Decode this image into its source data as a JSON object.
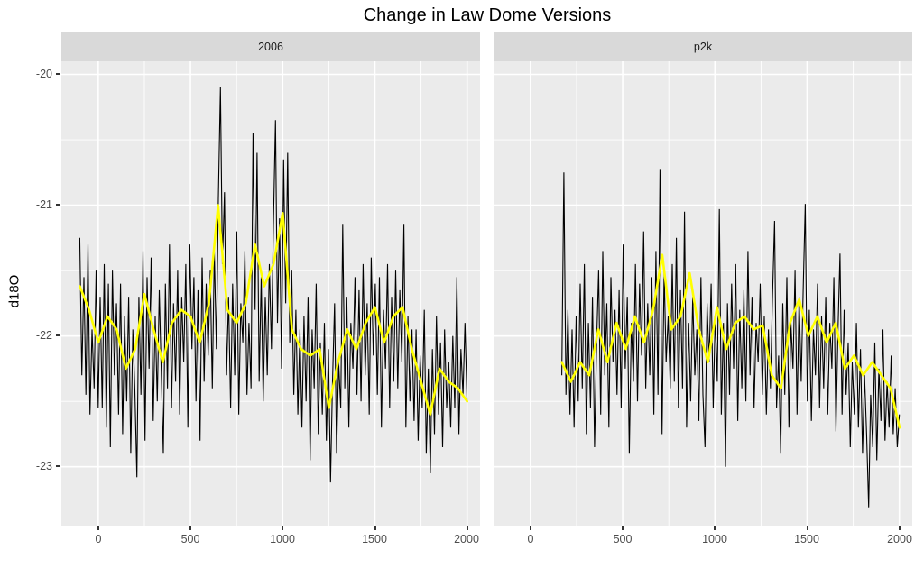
{
  "colors": {
    "panel_bg": "#EBEBEB",
    "strip_bg": "#D9D9D9",
    "grid": "#FFFFFF",
    "raw_line": "#000000",
    "smooth_line": "#FFFF00",
    "axis_text": "#4D4D4D",
    "tick_mark": "#333333",
    "title_text": "#000000"
  },
  "chart_data": {
    "type": "line",
    "title": "Change in Law Dome Versions",
    "xlabel": "",
    "ylabel": "d18O",
    "xlim": [
      -200,
      2070
    ],
    "ylim": [
      -23.45,
      -19.9
    ],
    "grid": "on",
    "legend": "none",
    "x_ticks": {
      "labels": [
        "0",
        "500",
        "1000",
        "1500",
        "2000"
      ],
      "values": [
        0,
        500,
        1000,
        1500,
        2000
      ],
      "minor": [
        250,
        750,
        1250,
        1750
      ]
    },
    "y_ticks": {
      "labels": [
        "-20",
        "-21",
        "-22",
        "-23"
      ],
      "values": [
        -20,
        -21,
        -22,
        -23
      ],
      "minor": [
        -20.5,
        -21.5,
        -22.5
      ]
    },
    "facets": [
      {
        "label": "2006",
        "raw": {
          "x0": -100,
          "dx": 11.05,
          "values": [
            -21.25,
            -22.3,
            -21.55,
            -22.45,
            -21.3,
            -22.6,
            -21.95,
            -22.4,
            -21.5,
            -22.55,
            -21.7,
            -22.55,
            -21.45,
            -22.7,
            -21.6,
            -22.85,
            -21.5,
            -22.3,
            -21.75,
            -22.6,
            -21.6,
            -22.75,
            -21.85,
            -22.5,
            -21.7,
            -22.9,
            -21.95,
            -22.4,
            -23.08,
            -21.7,
            -22.45,
            -21.35,
            -22.8,
            -21.55,
            -22.25,
            -21.4,
            -22.65,
            -21.85,
            -22.5,
            -21.65,
            -22.3,
            -22.9,
            -21.6,
            -22.4,
            -21.3,
            -22.55,
            -21.75,
            -22.35,
            -21.5,
            -22.6,
            -21.7,
            -22.2,
            -21.45,
            -22.7,
            -21.3,
            -22.1,
            -21.55,
            -22.5,
            -21.65,
            -22.8,
            -21.4,
            -22.35,
            -21.6,
            -22.15,
            -21.5,
            -22.4,
            -21.35,
            -22.1,
            -20.95,
            -20.1,
            -21.45,
            -20.9,
            -22.3,
            -21.7,
            -22.55,
            -21.6,
            -22.3,
            -21.2,
            -22.6,
            -21.75,
            -22.05,
            -21.35,
            -22.45,
            -21.9,
            -22.4,
            -20.45,
            -21.8,
            -20.6,
            -22.35,
            -21.55,
            -22.5,
            -21.7,
            -22.3,
            -21.45,
            -22.1,
            -21.15,
            -20.35,
            -21.9,
            -21.1,
            -22.25,
            -20.65,
            -21.75,
            -20.6,
            -22.05,
            -21.5,
            -22.45,
            -21.8,
            -22.6,
            -21.95,
            -22.7,
            -21.85,
            -22.5,
            -21.7,
            -22.95,
            -21.95,
            -22.4,
            -21.6,
            -22.75,
            -22.05,
            -22.6,
            -21.9,
            -22.8,
            -22.1,
            -23.12,
            -22.35,
            -21.75,
            -22.9,
            -22.2,
            -22.55,
            -21.15,
            -22.4,
            -21.7,
            -22.7,
            -21.9,
            -22.25,
            -21.55,
            -22.45,
            -21.65,
            -22.5,
            -21.45,
            -22.3,
            -21.75,
            -22.6,
            -21.4,
            -22.15,
            -21.6,
            -22.45,
            -21.55,
            -22.7,
            -21.8,
            -22.25,
            -21.45,
            -22.55,
            -21.7,
            -22.35,
            -21.5,
            -22.4,
            -21.65,
            -22.2,
            -21.15,
            -22.7,
            -21.85,
            -22.5,
            -21.95,
            -22.65,
            -21.95,
            -22.8,
            -22.15,
            -22.55,
            -21.8,
            -22.9,
            -22.25,
            -23.05,
            -22.1,
            -22.75,
            -21.85,
            -22.6,
            -22.05,
            -22.85,
            -21.95,
            -22.55,
            -22.2,
            -22.7,
            -22.0,
            -22.55,
            -21.55,
            -22.75,
            -22.1,
            -22.45,
            -21.9,
            -22.5
          ]
        },
        "smooth": {
          "x0": -100,
          "dx": 50,
          "values": [
            -21.62,
            -21.8,
            -22.05,
            -21.85,
            -21.95,
            -22.25,
            -22.1,
            -21.68,
            -21.95,
            -22.2,
            -21.9,
            -21.8,
            -21.85,
            -22.05,
            -21.75,
            -21.0,
            -21.8,
            -21.9,
            -21.75,
            -21.3,
            -21.62,
            -21.45,
            -21.06,
            -21.95,
            -22.1,
            -22.15,
            -22.1,
            -22.55,
            -22.2,
            -21.95,
            -22.1,
            -21.9,
            -21.78,
            -22.05,
            -21.85,
            -21.78,
            -22.1,
            -22.35,
            -22.6,
            -22.25,
            -22.35,
            -22.4,
            -22.5
          ]
        }
      },
      {
        "label": "p2k",
        "raw": {
          "x0": 170,
          "dx": 11.09,
          "values": [
            -22.3,
            -20.75,
            -22.45,
            -21.8,
            -22.6,
            -21.95,
            -22.7,
            -21.85,
            -22.5,
            -21.6,
            -22.4,
            -21.45,
            -22.75,
            -21.9,
            -22.55,
            -21.7,
            -22.85,
            -22.05,
            -21.5,
            -22.6,
            -21.35,
            -22.3,
            -21.75,
            -22.7,
            -21.55,
            -22.2,
            -21.8,
            -22.45,
            -21.65,
            -22.55,
            -21.3,
            -22.25,
            -21.7,
            -22.9,
            -21.9,
            -22.35,
            -21.45,
            -22.5,
            -21.6,
            -22.15,
            -21.2,
            -22.4,
            -21.75,
            -22.3,
            -21.55,
            -22.6,
            -21.35,
            -22.45,
            -20.73,
            -22.75,
            -21.5,
            -22.2,
            -21.85,
            -22.4,
            -21.45,
            -22.35,
            -21.25,
            -22.55,
            -21.65,
            -22.4,
            -21.05,
            -22.7,
            -21.9,
            -22.5,
            -21.7,
            -22.3,
            -21.95,
            -22.65,
            -21.55,
            -22.45,
            -22.85,
            -21.75,
            -22.2,
            -21.6,
            -22.55,
            -21.85,
            -22.35,
            -21.03,
            -22.6,
            -21.9,
            -23.0,
            -21.75,
            -22.45,
            -21.6,
            -22.25,
            -21.45,
            -22.65,
            -21.8,
            -22.4,
            -21.65,
            -22.5,
            -21.35,
            -22.3,
            -21.7,
            -22.55,
            -21.9,
            -22.2,
            -21.6,
            -22.45,
            -21.85,
            -22.6,
            -21.95,
            -22.4,
            -21.7,
            -21.12,
            -22.55,
            -22.15,
            -22.9,
            -21.75,
            -22.45,
            -21.55,
            -22.7,
            -21.9,
            -22.25,
            -21.5,
            -22.6,
            -21.7,
            -22.35,
            -21.65,
            -20.99,
            -22.5,
            -21.8,
            -22.65,
            -21.95,
            -22.3,
            -21.6,
            -22.55,
            -21.85,
            -22.4,
            -21.7,
            -22.6,
            -21.9,
            -22.25,
            -21.55,
            -22.73,
            -21.95,
            -21.37,
            -22.6,
            -21.8,
            -22.45,
            -22.05,
            -22.85,
            -22.2,
            -22.6,
            -21.9,
            -22.7,
            -22.1,
            -22.9,
            -22.3,
            -22.75,
            -23.31,
            -22.45,
            -22.85,
            -22.05,
            -22.95,
            -22.25,
            -22.65,
            -21.95,
            -22.8,
            -22.35,
            -22.7,
            -22.15,
            -22.75,
            -22.4,
            -22.85,
            -22.6
          ]
        },
        "smooth": {
          "x0": 170,
          "dx": 49.5,
          "values": [
            -22.2,
            -22.35,
            -22.2,
            -22.3,
            -21.95,
            -22.2,
            -21.9,
            -22.1,
            -21.85,
            -22.05,
            -21.8,
            -21.38,
            -21.95,
            -21.85,
            -21.52,
            -21.95,
            -22.2,
            -21.78,
            -22.1,
            -21.9,
            -21.85,
            -21.95,
            -21.92,
            -22.3,
            -22.4,
            -21.9,
            -21.72,
            -22.0,
            -21.85,
            -22.05,
            -21.9,
            -22.25,
            -22.15,
            -22.3,
            -22.2,
            -22.3,
            -22.4,
            -22.7
          ]
        }
      }
    ]
  }
}
